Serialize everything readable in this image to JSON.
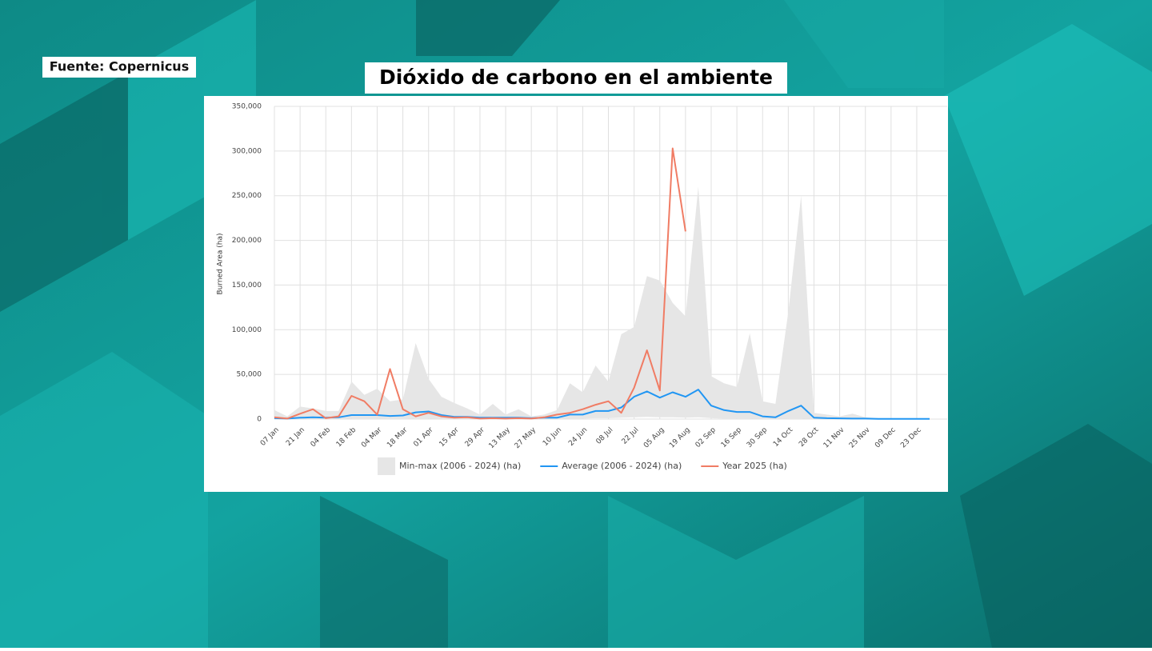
{
  "source": "Fuente: Copernicus",
  "headline": "Dióxido de carbono en el ambiente",
  "chart_data": {
    "type": "line",
    "y_label": "Burned Area (ha)",
    "categories": [
      "07 Jan",
      null,
      "21 Jan",
      null,
      "04 Feb",
      null,
      "18 Feb",
      null,
      "04 Mar",
      null,
      "18 Mar",
      null,
      "01 Apr",
      null,
      "15 Apr",
      null,
      "29 Apr",
      null,
      "13 May",
      null,
      "27 May",
      null,
      "10 Jun",
      null,
      "24 Jun",
      null,
      "08 Jul",
      null,
      "22 Jul",
      null,
      "05 Aug",
      null,
      "19 Aug",
      null,
      "02 Sep",
      null,
      "16 Sep",
      null,
      "30 Sep",
      null,
      "14 Oct",
      null,
      "28 Oct",
      null,
      "11 Nov",
      null,
      "25 Nov",
      null,
      "09 Dec",
      null,
      "23 Dec",
      null
    ],
    "series": [
      {
        "name": "Min-max (2006 - 2024) (ha)",
        "color": "#e6e6e6",
        "high": [
          10000,
          3000,
          14000,
          12000,
          9000,
          9000,
          42000,
          27000,
          34000,
          20000,
          22000,
          85000,
          45000,
          25000,
          18000,
          12000,
          5000,
          17000,
          5000,
          11000,
          3000,
          5000,
          10000,
          40000,
          30000,
          60000,
          42000,
          95000,
          103000,
          160000,
          155000,
          130000,
          115000,
          260000,
          48000,
          40000,
          36000,
          96000,
          20000,
          17000,
          120000,
          250000,
          7000,
          5000,
          3000,
          6000,
          2000,
          1000,
          1000,
          1000,
          1000,
          1000
        ],
        "low": [
          0,
          0,
          0,
          0,
          0,
          0,
          500,
          500,
          500,
          0,
          0,
          500,
          500,
          0,
          0,
          0,
          0,
          0,
          0,
          0,
          0,
          0,
          0,
          500,
          500,
          1000,
          1000,
          1500,
          2000,
          2500,
          2000,
          2000,
          1500,
          2000,
          1000,
          500,
          500,
          500,
          0,
          0,
          500,
          500,
          0,
          0,
          0,
          0,
          0,
          0,
          0,
          0,
          0,
          0
        ]
      },
      {
        "name": "Average (2006 - 2024) (ha)",
        "color": "#2196f3",
        "values": [
          1000,
          500,
          1500,
          2000,
          1500,
          2000,
          4500,
          4500,
          4500,
          3500,
          4000,
          7500,
          8500,
          4500,
          2500,
          2500,
          1500,
          1500,
          1500,
          1500,
          1000,
          1500,
          1500,
          5000,
          5000,
          9000,
          9000,
          13000,
          25000,
          31000,
          24000,
          30000,
          25000,
          33000,
          15000,
          10000,
          8000,
          8000,
          3000,
          2000,
          9000,
          15000,
          1500,
          1000,
          800,
          500,
          500,
          300,
          300,
          300,
          300,
          300
        ]
      },
      {
        "name": "Year 2025 (ha)",
        "color": "#f07c64",
        "values": [
          2000,
          500,
          6000,
          11000,
          1000,
          3000,
          26000,
          20000,
          5000,
          56000,
          11000,
          3000,
          7000,
          3000,
          1500,
          2000,
          500,
          1000,
          500,
          1000,
          500,
          2000,
          5000,
          7000,
          11000,
          16000,
          20000,
          7000,
          35000,
          77000,
          32000,
          303000,
          210000,
          null,
          null,
          null,
          null,
          null,
          null,
          null,
          null,
          null,
          null,
          null,
          null,
          null,
          null,
          null,
          null,
          null,
          null,
          null
        ]
      }
    ],
    "ylim": [
      0,
      350000
    ],
    "yticks": [
      0,
      {
        "value": 50000,
        "label": "50,000"
      },
      {
        "value": 100000,
        "label": "100,000"
      },
      {
        "value": 150000,
        "label": "150,000"
      },
      {
        "value": 200000,
        "label": "200,000"
      },
      {
        "value": 250000,
        "label": "250,000"
      },
      {
        "value": 300000,
        "label": "300,000"
      },
      {
        "value": 350000,
        "label": "350,000"
      }
    ],
    "grid": true
  }
}
